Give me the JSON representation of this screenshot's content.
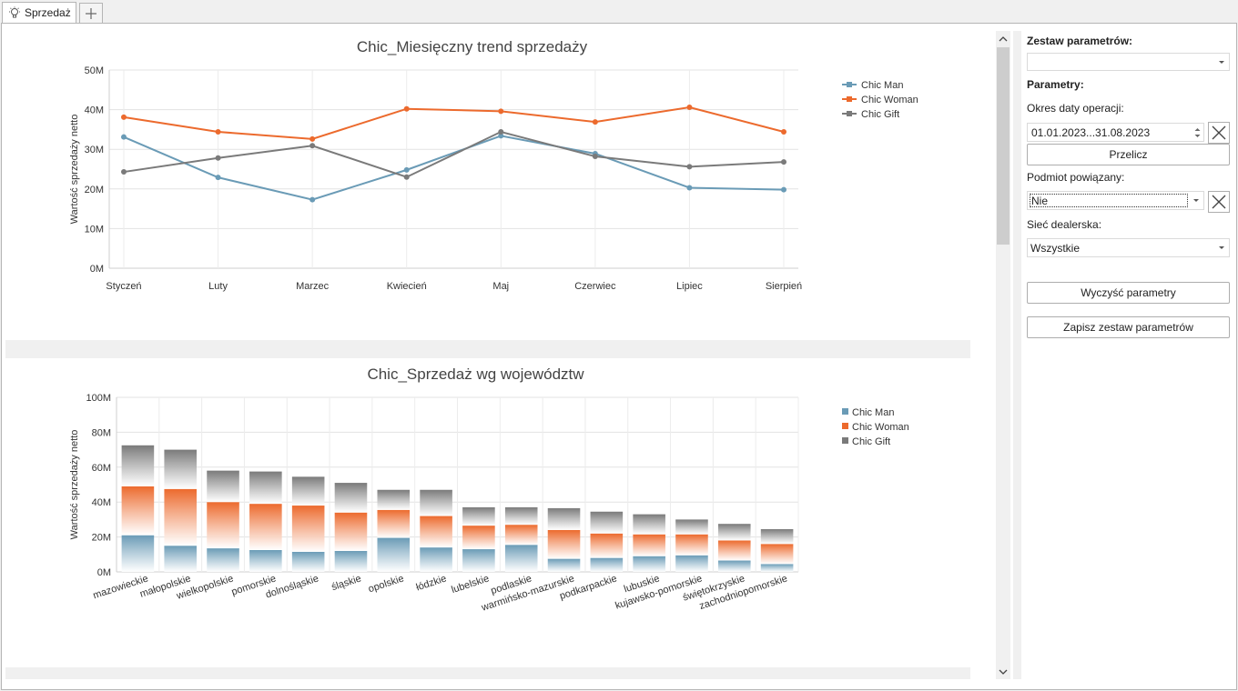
{
  "tab": {
    "label": "Sprzedaż",
    "icon": "lightbulb-icon",
    "add_icon": "plus-icon"
  },
  "charts": [
    {
      "title": "Chic_Miesięczny trend sprzedaży",
      "ylabel": "Wartość sprzedaży netto",
      "yticks": [
        "0M",
        "10M",
        "20M",
        "30M",
        "40M",
        "50M"
      ]
    },
    {
      "title": "Chic_Sprzedaż wg województw",
      "ylabel": "Wartość sprzedaży netto",
      "yticks": [
        "0M",
        "20M",
        "40M",
        "60M",
        "80M",
        "100M"
      ]
    }
  ],
  "chart_data": [
    {
      "type": "line",
      "title": "Chic_Miesięczny trend sprzedaży",
      "xlabel": "",
      "ylabel": "Wartość sprzedaży netto",
      "categories": [
        "Styczeń",
        "Luty",
        "Marzec",
        "Kwiecień",
        "Maj",
        "Czerwiec",
        "Lipiec",
        "Sierpień"
      ],
      "ylim": [
        0,
        50
      ],
      "unit": "M",
      "grid": true,
      "legend": "right",
      "series": [
        {
          "name": "Chic Man",
          "color": "#6a9bb6",
          "values": [
            33.1,
            22.9,
            17.3,
            24.8,
            33.4,
            28.9,
            20.3,
            19.8
          ]
        },
        {
          "name": "Chic Woman",
          "color": "#ec6a2d",
          "values": [
            38.1,
            34.4,
            32.6,
            40.2,
            39.6,
            36.9,
            40.6,
            34.4
          ]
        },
        {
          "name": "Chic Gift",
          "color": "#7a7a7a",
          "values": [
            24.3,
            27.8,
            30.9,
            23.0,
            34.4,
            28.2,
            25.6,
            26.8
          ]
        }
      ]
    },
    {
      "type": "bar",
      "stacked": true,
      "title": "Chic_Sprzedaż wg województw",
      "xlabel": "",
      "ylabel": "Wartość sprzedaży netto",
      "categories": [
        "mazowieckie",
        "małopolskie",
        "wielkopolskie",
        "pomorskie",
        "dolnośląskie",
        "śląskie",
        "opolskie",
        "łódzkie",
        "lubelskie",
        "podlaskie",
        "warmińsko-mazurskie",
        "podkarpackie",
        "lubuskie",
        "kujawsko-pomorskie",
        "świętokrzyskie",
        "zachodniopomorskie"
      ],
      "ylim": [
        0,
        100
      ],
      "unit": "M",
      "grid": true,
      "legend": "right",
      "series": [
        {
          "name": "Chic Man",
          "color": "#6a9bb6",
          "values": [
            21,
            15,
            13.5,
            12.5,
            11.5,
            12,
            19.5,
            14,
            13,
            15.5,
            7.5,
            8,
            9,
            9.5,
            6.5,
            4.5
          ]
        },
        {
          "name": "Chic Woman",
          "color": "#ec6a2d",
          "values": [
            28,
            32.5,
            26.5,
            26.5,
            26.5,
            22,
            16,
            18,
            13.5,
            11.5,
            16.5,
            14,
            12.5,
            12,
            11.5,
            11.5
          ]
        },
        {
          "name": "Chic Gift",
          "color": "#7a7a7a",
          "values": [
            23.5,
            22.5,
            18,
            18.5,
            16.5,
            17,
            11.5,
            15,
            10.5,
            10,
            12.5,
            12.5,
            11.5,
            8.5,
            9.5,
            8.5
          ]
        }
      ]
    }
  ],
  "params": {
    "set_label": "Zestaw parametrów:",
    "set_value": "",
    "params_label": "Parametry:",
    "date_label": "Okres daty operacji:",
    "date_value": "01.01.2023...31.08.2023",
    "recalc": "Przelicz",
    "related_label": "Podmiot powiązany:",
    "related_value": "Nie",
    "network_label": "Sieć dealerska:",
    "network_value": "Wszystkie",
    "clear": "Wyczyść parametry",
    "save": "Zapisz zestaw parametrów"
  }
}
